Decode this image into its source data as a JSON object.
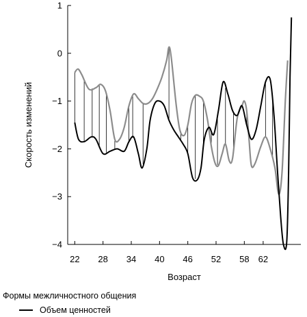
{
  "chart_data": {
    "type": "line",
    "title": "",
    "xlabel": "Возраст",
    "ylabel": "Скорость изменений",
    "xlim": [
      20.5,
      70
    ],
    "ylim": [
      -4,
      1
    ],
    "x_ticks": [
      22,
      28,
      34,
      40,
      46,
      52,
      58,
      62
    ],
    "x_tick_labels": [
      "22",
      "28",
      "34",
      "40",
      "46",
      "52",
      "58",
      "62"
    ],
    "y_ticks": [
      1,
      0,
      -1,
      -2,
      -3,
      -4
    ],
    "y_tick_labels": [
      "1",
      "0",
      "−1",
      "−2",
      "−3",
      "−4"
    ],
    "grid": false,
    "legend": {
      "title": "Формы межличностного общения",
      "placement": "bottom-left"
    },
    "series": [
      {
        "name": "Объем ценностей",
        "color": "#000000",
        "points": [
          [
            22,
            -1.45
          ],
          [
            22.8,
            -1.8
          ],
          [
            24,
            -1.85
          ],
          [
            25.5,
            -1.75
          ],
          [
            26.5,
            -1.8
          ],
          [
            28,
            -2.1
          ],
          [
            29.5,
            -2.05
          ],
          [
            31,
            -2.0
          ],
          [
            32.5,
            -2.05
          ],
          [
            33.5,
            -1.85
          ],
          [
            34.5,
            -1.75
          ],
          [
            35.5,
            -2.1
          ],
          [
            36.3,
            -2.4
          ],
          [
            37.3,
            -2.0
          ],
          [
            38,
            -1.4
          ],
          [
            39,
            -1.05
          ],
          [
            40,
            -1.0
          ],
          [
            41,
            -1.1
          ],
          [
            42,
            -1.4
          ],
          [
            43,
            -1.6
          ],
          [
            44,
            -1.75
          ],
          [
            45,
            -1.9
          ],
          [
            46,
            -2.1
          ],
          [
            47,
            -2.6
          ],
          [
            48,
            -2.65
          ],
          [
            48.8,
            -2.4
          ],
          [
            49.5,
            -1.8
          ],
          [
            50.5,
            -1.55
          ],
          [
            51.5,
            -1.7
          ],
          [
            52.5,
            -1.2
          ],
          [
            53.5,
            -0.6
          ],
          [
            54.5,
            -0.85
          ],
          [
            55.5,
            -1.2
          ],
          [
            56.5,
            -1.3
          ],
          [
            57.5,
            -1.1
          ],
          [
            58.5,
            -1.5
          ],
          [
            59.5,
            -1.8
          ],
          [
            60.5,
            -1.6
          ],
          [
            61.5,
            -1.1
          ],
          [
            62.5,
            -0.6
          ],
          [
            63.5,
            -0.55
          ],
          [
            64.3,
            -1.3
          ],
          [
            65,
            -2.4
          ],
          [
            65.7,
            -3.4
          ],
          [
            66.3,
            -4.0
          ],
          [
            67,
            -3.95
          ],
          [
            67.4,
            -2.5
          ],
          [
            67.7,
            -0.5
          ],
          [
            68,
            0.75
          ]
        ]
      },
      {
        "name": "",
        "color": "#8c8c8c",
        "points": [
          [
            22,
            -0.4
          ],
          [
            22.7,
            -0.33
          ],
          [
            23.5,
            -0.45
          ],
          [
            25,
            -0.75
          ],
          [
            26.5,
            -0.72
          ],
          [
            27.5,
            -0.65
          ],
          [
            28.5,
            -0.78
          ],
          [
            29.5,
            -1.2
          ],
          [
            30.5,
            -1.8
          ],
          [
            31.5,
            -1.8
          ],
          [
            32.5,
            -1.55
          ],
          [
            33.5,
            -1.1
          ],
          [
            34.5,
            -0.85
          ],
          [
            35.5,
            -0.95
          ],
          [
            36.5,
            -1.05
          ],
          [
            37.5,
            -1.05
          ],
          [
            38.5,
            -0.95
          ],
          [
            39.5,
            -0.75
          ],
          [
            40.5,
            -0.5
          ],
          [
            41.5,
            -0.15
          ],
          [
            42,
            0.13
          ],
          [
            42.5,
            -0.1
          ],
          [
            43.5,
            -1.05
          ],
          [
            44.3,
            -1.6
          ],
          [
            45.2,
            -1.72
          ],
          [
            46,
            -1.5
          ],
          [
            46.8,
            -1.05
          ],
          [
            47.6,
            -0.88
          ],
          [
            48.5,
            -0.9
          ],
          [
            49.3,
            -1.0
          ],
          [
            50.2,
            -1.4
          ],
          [
            51,
            -1.95
          ],
          [
            51.8,
            -2.3
          ],
          [
            52.5,
            -2.35
          ],
          [
            53.3,
            -2.1
          ],
          [
            54,
            -1.9
          ],
          [
            54.8,
            -2.25
          ],
          [
            55.5,
            -2.2
          ],
          [
            56.5,
            -1.35
          ],
          [
            57.5,
            -1.1
          ],
          [
            58,
            -1.0
          ],
          [
            58.5,
            -1.2
          ],
          [
            59,
            -1.8
          ],
          [
            59.5,
            -2.35
          ],
          [
            60.3,
            -2.3
          ],
          [
            61.5,
            -1.95
          ],
          [
            62.5,
            -1.75
          ],
          [
            63.5,
            -2.0
          ],
          [
            64.5,
            -2.4
          ],
          [
            65.3,
            -2.95
          ],
          [
            66,
            -2.5
          ],
          [
            66.7,
            -1.0
          ],
          [
            67.2,
            -0.15
          ]
        ]
      }
    ],
    "hatching_x": [
      22,
      24,
      25.7,
      27.2,
      28.7,
      30.5,
      33.5,
      34.3,
      36.5,
      42,
      44.5,
      46,
      47.6,
      49.3,
      51,
      52.3,
      54,
      55.7,
      57,
      58.5,
      62.5,
      64,
      65.3
    ]
  }
}
